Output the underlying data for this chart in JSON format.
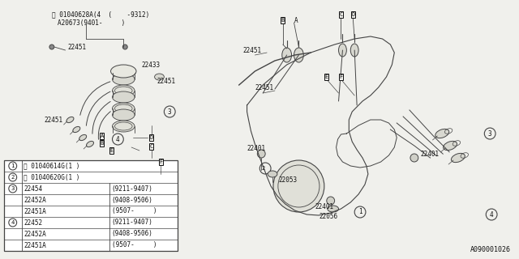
{
  "bg_color": "#f0f0ec",
  "line_color": "#444444",
  "diagram_id": "A090001026",
  "fig_width": 6.4,
  "fig_height": 3.2,
  "dpi": 100,
  "annotation1": "Ⓑ 01040628A(4  (    -9312)",
  "annotation2": "A20673(9401-     )",
  "table_rows": [
    {
      "ref": "1",
      "circled": true,
      "part": "Ⓑ 01040614G(1 )",
      "date": "",
      "merged": true
    },
    {
      "ref": "2",
      "circled": true,
      "part": "Ⓑ 01040620G(1 )",
      "date": "",
      "merged": true
    },
    {
      "ref": "3",
      "circled": true,
      "part": "22454",
      "date": "(9211-9407)",
      "merged": false
    },
    {
      "ref": "",
      "circled": false,
      "part": "22452A",
      "date": "(9408-9506)",
      "merged": false
    },
    {
      "ref": "",
      "circled": false,
      "part": "22451A",
      "date": "(9507-     )",
      "merged": false
    },
    {
      "ref": "4",
      "circled": true,
      "part": "22452",
      "date": "(9211-9407)",
      "merged": false
    },
    {
      "ref": "",
      "circled": false,
      "part": "22452A",
      "date": "(9408-9506)",
      "merged": false
    },
    {
      "ref": "",
      "circled": false,
      "part": "22451A",
      "date": "(9507-     )",
      "merged": false
    }
  ]
}
